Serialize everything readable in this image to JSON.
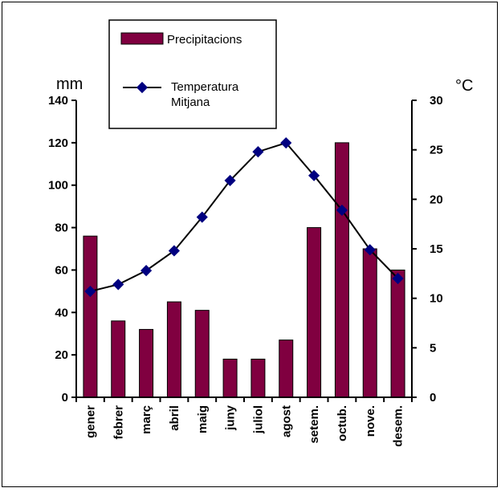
{
  "chart_data": {
    "type": "bar",
    "categories": [
      "gener",
      "febrer",
      "març",
      "abril",
      "maig",
      "juny",
      "juliol",
      "agost",
      "setem.",
      "octub.",
      "nove.",
      "desem."
    ],
    "series": [
      {
        "name": "Precipitacions",
        "type": "bar",
        "axis": "left",
        "values": [
          76,
          36,
          32,
          45,
          41,
          18,
          18,
          27,
          80,
          120,
          70,
          60
        ]
      },
      {
        "name": "Temperatura Mitjana",
        "type": "line",
        "axis": "right",
        "values": [
          10.7,
          11.4,
          12.8,
          14.8,
          18.2,
          21.9,
          24.8,
          25.7,
          22.4,
          18.9,
          14.9,
          12.0
        ]
      }
    ],
    "y_left": {
      "label": "mm",
      "range": [
        0,
        140
      ],
      "ticks": [
        0,
        20,
        40,
        60,
        80,
        100,
        120,
        140
      ]
    },
    "y_right": {
      "label": "°C",
      "range": [
        0,
        30
      ],
      "ticks": [
        0,
        5,
        10,
        15,
        20,
        25,
        30
      ]
    },
    "legend": {
      "placement": "top-center",
      "entries": [
        {
          "label": "Precipitacions"
        },
        {
          "label_line1": "Temperatura",
          "label_line2": "Mitjana"
        }
      ]
    },
    "colors": {
      "bar_fill": "#800040",
      "bar_stroke": "#000000",
      "line": "#000000",
      "marker": "#000080"
    },
    "grid": false
  }
}
